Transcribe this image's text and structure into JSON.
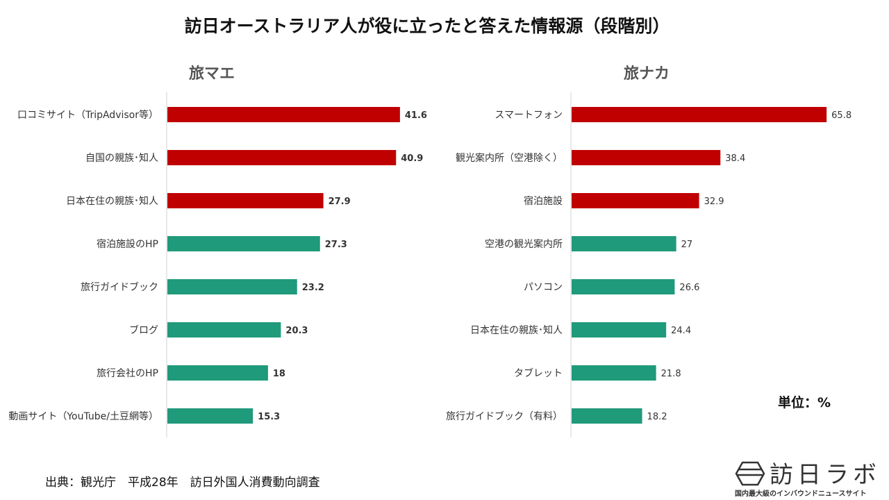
{
  "title": "訪日オーストラリア人が役に立ったと答えた情報源（段階別）",
  "unit_label": "単位：%",
  "source": "出典：観光庁　平成28年　訪日外国人消費動向調査",
  "logo": {
    "name": "訪日ラボ",
    "tagline": "国内最大級のインバウンドニュースサイト"
  },
  "colors": {
    "highlight": "#C00000",
    "normal": "#1F9A7A",
    "axis": "#D0D0D0"
  },
  "chart_data": [
    {
      "type": "bar",
      "orientation": "horizontal",
      "title": "旅マエ",
      "categories": [
        "口コミサイト（TripAdvisor等）",
        "自国の親族･知人",
        "日本在住の親族･知人",
        "宿泊施設のHP",
        "旅行ガイドブック",
        "ブログ",
        "旅行会社のHP",
        "動画サイト（YouTube/土豆網等）"
      ],
      "values": [
        41.6,
        40.9,
        27.9,
        27.3,
        23.2,
        20.3,
        18,
        15.3
      ],
      "value_labels": [
        "41.6",
        "40.9",
        "27.9",
        "27.3",
        "23.2",
        "20.3",
        "18",
        "15.3"
      ],
      "highlighted_top": 3
    },
    {
      "type": "bar",
      "orientation": "horizontal",
      "title": "旅ナカ",
      "categories": [
        "スマートフォン",
        "観光案内所（空港除く）",
        "宿泊施設",
        "空港の観光案内所",
        "パソコン",
        "日本在住の親族･知人",
        "タブレット",
        "旅行ガイドブック（有料）"
      ],
      "values": [
        65.8,
        38.4,
        32.9,
        27,
        26.6,
        24.4,
        21.8,
        18.2
      ],
      "value_labels": [
        "65.8",
        "38.4",
        "32.9",
        "27",
        "26.6",
        "24.4",
        "21.8",
        "18.2"
      ],
      "highlighted_top": 3
    }
  ]
}
